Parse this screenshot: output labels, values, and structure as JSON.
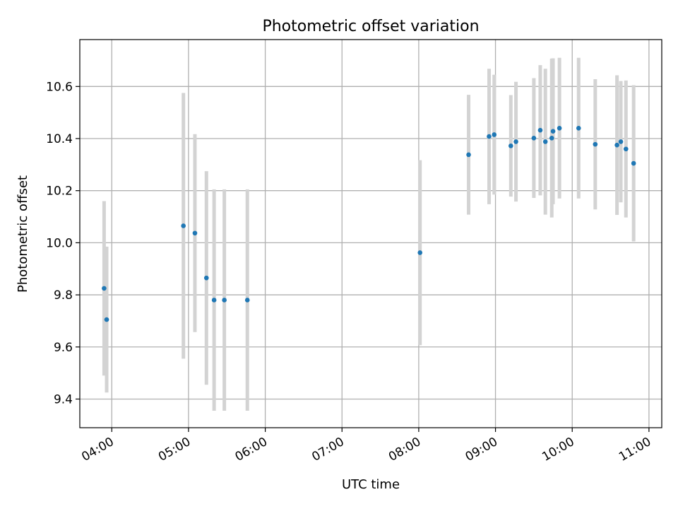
{
  "chart_data": {
    "type": "scatter",
    "title": "Photometric offset variation",
    "xlabel": "UTC time",
    "ylabel": "Photometric offset",
    "x_format": "HH:MM",
    "x_ticks": [
      "04:00",
      "05:00",
      "06:00",
      "07:00",
      "08:00",
      "09:00",
      "10:00",
      "11:00"
    ],
    "y_ticks": [
      "9.4",
      "9.6",
      "9.8",
      "10.0",
      "10.2",
      "10.4",
      "10.6"
    ],
    "xlim": [
      "03:35",
      "11:10"
    ],
    "ylim": [
      9.29,
      10.78
    ],
    "grid": true,
    "point_color": "#1f77b4",
    "errorbar_color": "#d3d3d3",
    "series": [
      {
        "points": [
          {
            "x": "03:54",
            "y": 9.825,
            "err": 0.335
          },
          {
            "x": "03:56",
            "y": 9.705,
            "err": 0.28
          },
          {
            "x": "04:56",
            "y": 10.065,
            "err": 0.51
          },
          {
            "x": "05:05",
            "y": 10.037,
            "err": 0.38
          },
          {
            "x": "05:14",
            "y": 9.865,
            "err": 0.41
          },
          {
            "x": "05:20",
            "y": 9.78,
            "err": 0.425
          },
          {
            "x": "05:28",
            "y": 9.78,
            "err": 0.425
          },
          {
            "x": "05:46",
            "y": 9.78,
            "err": 0.425
          },
          {
            "x": "08:01",
            "y": 9.962,
            "err": 0.355
          },
          {
            "x": "08:39",
            "y": 10.338,
            "err": 0.23
          },
          {
            "x": "08:55",
            "y": 10.408,
            "err": 0.26
          },
          {
            "x": "08:59",
            "y": 10.415,
            "err": 0.23
          },
          {
            "x": "09:12",
            "y": 10.372,
            "err": 0.195
          },
          {
            "x": "09:16",
            "y": 10.388,
            "err": 0.23
          },
          {
            "x": "09:30",
            "y": 10.402,
            "err": 0.23
          },
          {
            "x": "09:35",
            "y": 10.432,
            "err": 0.25
          },
          {
            "x": "09:39",
            "y": 10.388,
            "err": 0.28
          },
          {
            "x": "09:44",
            "y": 10.402,
            "err": 0.305
          },
          {
            "x": "09:45",
            "y": 10.428,
            "err": 0.28
          },
          {
            "x": "09:50",
            "y": 10.44,
            "err": 0.27
          },
          {
            "x": "10:05",
            "y": 10.44,
            "err": 0.27
          },
          {
            "x": "10:18",
            "y": 10.378,
            "err": 0.25
          },
          {
            "x": "10:35",
            "y": 10.375,
            "err": 0.268
          },
          {
            "x": "10:38",
            "y": 10.388,
            "err": 0.233
          },
          {
            "x": "10:42",
            "y": 10.36,
            "err": 0.263
          },
          {
            "x": "10:48",
            "y": 10.305,
            "err": 0.3
          }
        ]
      }
    ]
  }
}
